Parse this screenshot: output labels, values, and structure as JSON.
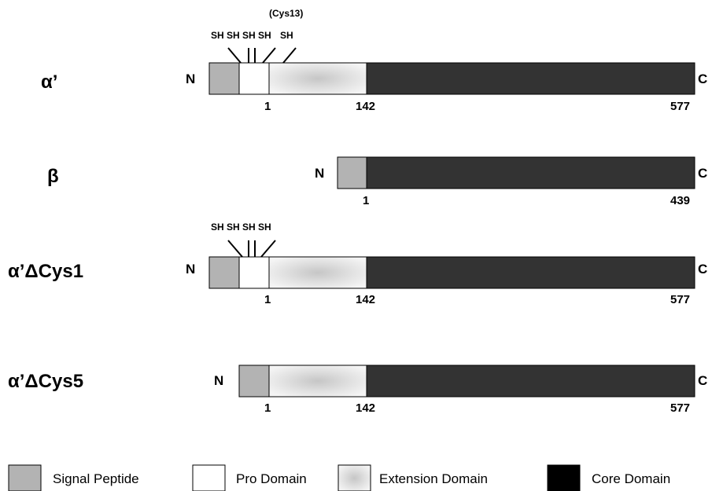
{
  "rows": [
    {
      "label": "α’",
      "n": "N",
      "c": "C",
      "numbers": [
        "1",
        "142",
        "577"
      ],
      "sh": [
        "SH",
        "SH",
        "SH",
        "SH",
        "SH"
      ],
      "sh_note": "(Cys13)"
    },
    {
      "label": "β",
      "n": "N",
      "c": "C",
      "numbers": [
        "1",
        "439"
      ]
    },
    {
      "label": "α’ΔCys1",
      "n": "N",
      "c": "C",
      "numbers": [
        "1",
        "142",
        "577"
      ],
      "sh": [
        "SH",
        "SH",
        "SH",
        "SH"
      ]
    },
    {
      "label": "α’ΔCys5",
      "n": "N",
      "c": "C",
      "numbers": [
        "1",
        "142",
        "577"
      ]
    }
  ],
  "legend": [
    {
      "label": "Signal Peptide",
      "color": "#b3b3b3"
    },
    {
      "label": "Pro Domain",
      "color": "#ffffff"
    },
    {
      "label": "Extension Domain",
      "color": "gradient-light-gray"
    },
    {
      "label": "Core Domain",
      "color": "#000000"
    }
  ],
  "colors": {
    "signal": "#b3b3b3",
    "pro": "#ffffff",
    "extension_center": "#c8c8c8",
    "extension_edge": "#f2f2f2",
    "core": "#333333",
    "core_legend": "#000000"
  }
}
